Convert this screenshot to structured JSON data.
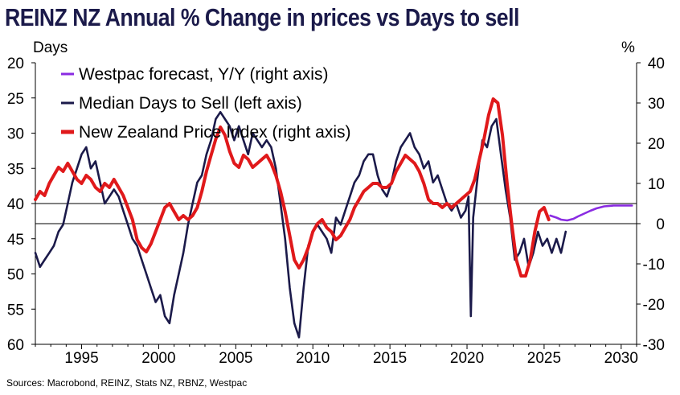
{
  "chart_data": {
    "type": "line",
    "title": "REINZ NZ Annual % Change in prices vs Days to sell",
    "left_axis": {
      "label": "Days",
      "ticks": [
        20,
        25,
        30,
        35,
        40,
        45,
        50,
        55,
        60
      ],
      "range": [
        20,
        60
      ],
      "inverted": true
    },
    "right_axis": {
      "label": "%",
      "ticks": [
        40,
        30,
        20,
        10,
        0,
        -10,
        -20,
        -30
      ],
      "range": [
        -30,
        40
      ]
    },
    "x_axis": {
      "ticks": [
        "1995",
        "2000",
        "2005",
        "2010",
        "2015",
        "2020",
        "2025",
        "2030"
      ],
      "range": [
        1992,
        2031
      ]
    },
    "reference_lines": [
      {
        "axis": "left",
        "value": 40
      },
      {
        "axis": "right",
        "value": 0
      }
    ],
    "legend_position": "top-left",
    "series": [
      {
        "name": "Westpac forecast, Y/Y (right axis)",
        "axis": "right",
        "color": "#8a2be2",
        "x": [
          2025.4,
          2025.8,
          2026.1,
          2026.5,
          2026.9,
          2027.2,
          2027.6,
          2028.0,
          2028.4,
          2028.9,
          2029.5,
          2030.0,
          2030.7
        ],
        "values": [
          2.0,
          1.5,
          1.0,
          0.8,
          1.2,
          1.8,
          2.5,
          3.2,
          3.8,
          4.3,
          4.5,
          4.5,
          4.5
        ]
      },
      {
        "name": "Median Days to Sell (left axis)",
        "axis": "left",
        "color": "#1b1a4a",
        "x": [
          1992.0,
          1992.3,
          1992.6,
          1992.9,
          1993.2,
          1993.5,
          1993.8,
          1994.1,
          1994.4,
          1994.7,
          1995.0,
          1995.3,
          1995.6,
          1995.9,
          1996.2,
          1996.5,
          1996.8,
          1997.1,
          1997.4,
          1997.7,
          1998.0,
          1998.3,
          1998.6,
          1998.9,
          1999.2,
          1999.5,
          1999.8,
          2000.1,
          2000.4,
          2000.7,
          2001.0,
          2001.3,
          2001.6,
          2001.9,
          2002.2,
          2002.5,
          2002.8,
          2003.1,
          2003.4,
          2003.7,
          2004.0,
          2004.3,
          2004.6,
          2004.9,
          2005.2,
          2005.5,
          2005.8,
          2006.1,
          2006.4,
          2006.7,
          2007.0,
          2007.3,
          2007.6,
          2007.9,
          2008.2,
          2008.5,
          2008.8,
          2009.1,
          2009.4,
          2009.7,
          2010.0,
          2010.3,
          2010.6,
          2010.9,
          2011.2,
          2011.5,
          2011.8,
          2012.1,
          2012.4,
          2012.7,
          2013.0,
          2013.3,
          2013.6,
          2013.9,
          2014.2,
          2014.5,
          2014.8,
          2015.1,
          2015.4,
          2015.7,
          2016.0,
          2016.3,
          2016.6,
          2016.9,
          2017.2,
          2017.5,
          2017.8,
          2018.1,
          2018.4,
          2018.7,
          2019.0,
          2019.3,
          2019.6,
          2019.9,
          2020.1,
          2020.25,
          2020.4,
          2020.6,
          2020.8,
          2021.0,
          2021.3,
          2021.6,
          2021.9,
          2022.2,
          2022.5,
          2022.8,
          2023.1,
          2023.4,
          2023.7,
          2024.0,
          2024.3,
          2024.6,
          2024.9,
          2025.2,
          2025.5,
          2025.8,
          2026.1,
          2026.4
        ],
        "values": [
          47,
          49,
          48,
          47,
          46,
          44,
          43,
          40,
          37,
          35,
          33,
          32,
          35,
          34,
          37,
          40,
          39,
          38,
          39,
          41,
          43,
          45,
          46,
          48,
          50,
          52,
          54,
          53,
          56,
          57,
          53,
          50,
          47,
          43,
          40,
          37,
          36,
          33,
          31,
          28,
          27,
          28,
          29,
          31,
          29,
          31,
          33,
          30,
          31,
          32,
          31,
          32,
          35,
          40,
          45,
          52,
          57,
          59,
          52,
          46,
          44,
          43,
          44,
          45,
          47,
          42,
          43,
          41,
          39,
          37,
          36,
          34,
          33,
          33,
          36,
          38,
          39,
          37,
          34,
          32,
          31,
          30,
          32,
          33,
          35,
          34,
          37,
          36,
          38,
          40,
          41,
          40,
          42,
          41,
          39,
          56,
          42,
          38,
          34,
          31,
          32,
          29,
          28,
          33,
          38,
          42,
          48,
          47,
          45,
          49,
          47,
          44,
          46,
          45,
          47,
          45,
          47,
          44
        ]
      },
      {
        "name": "New Zealand Price Index (right axis)",
        "axis": "right",
        "color": "#e0191b",
        "x": [
          1992.0,
          1992.3,
          1992.6,
          1992.9,
          1993.2,
          1993.5,
          1993.8,
          1994.1,
          1994.4,
          1994.7,
          1995.0,
          1995.3,
          1995.6,
          1995.9,
          1996.2,
          1996.5,
          1996.8,
          1997.1,
          1997.4,
          1997.7,
          1998.0,
          1998.3,
          1998.6,
          1998.9,
          1999.2,
          1999.5,
          1999.8,
          2000.1,
          2000.4,
          2000.7,
          2001.0,
          2001.3,
          2001.6,
          2001.9,
          2002.2,
          2002.5,
          2002.8,
          2003.1,
          2003.4,
          2003.7,
          2004.0,
          2004.3,
          2004.6,
          2004.9,
          2005.2,
          2005.5,
          2005.8,
          2006.1,
          2006.4,
          2006.7,
          2007.0,
          2007.3,
          2007.6,
          2007.9,
          2008.2,
          2008.5,
          2008.8,
          2009.1,
          2009.4,
          2009.7,
          2010.0,
          2010.3,
          2010.6,
          2010.9,
          2011.2,
          2011.5,
          2011.8,
          2012.1,
          2012.4,
          2012.7,
          2013.0,
          2013.3,
          2013.6,
          2013.9,
          2014.2,
          2014.5,
          2014.8,
          2015.1,
          2015.4,
          2015.7,
          2016.0,
          2016.3,
          2016.6,
          2016.9,
          2017.2,
          2017.5,
          2017.8,
          2018.1,
          2018.4,
          2018.7,
          2019.0,
          2019.3,
          2019.6,
          2019.9,
          2020.2,
          2020.5,
          2020.8,
          2021.1,
          2021.4,
          2021.7,
          2022.0,
          2022.3,
          2022.6,
          2022.9,
          2023.2,
          2023.5,
          2023.8,
          2024.1,
          2024.4,
          2024.7,
          2025.0,
          2025.3
        ],
        "values": [
          6,
          8,
          7,
          10,
          12,
          14,
          13,
          15,
          13,
          11,
          10,
          12,
          11,
          9,
          8,
          10,
          9,
          11,
          9,
          7,
          4,
          1,
          -4,
          -6,
          -7,
          -5,
          -2,
          1,
          4,
          5,
          3,
          1,
          2,
          1,
          2,
          4,
          8,
          13,
          17,
          21,
          24,
          22,
          18,
          15,
          14,
          17,
          16,
          14,
          15,
          16,
          17,
          15,
          12,
          8,
          3,
          -3,
          -9,
          -11,
          -9,
          -6,
          -2,
          0,
          1,
          -1,
          -2,
          -4,
          -3,
          -1,
          1,
          4,
          6,
          8,
          9,
          10,
          10,
          9,
          9,
          10,
          13,
          15,
          17,
          16,
          15,
          13,
          10,
          6,
          5,
          5,
          4,
          5,
          4,
          5,
          6,
          7,
          8,
          11,
          16,
          21,
          27,
          31,
          30,
          22,
          10,
          0,
          -9,
          -13,
          -13,
          -9,
          -2,
          3,
          4,
          1
        ]
      }
    ]
  },
  "sources": "Sources: Macrobond, REINZ, Stats NZ, RBNZ, Westpac"
}
